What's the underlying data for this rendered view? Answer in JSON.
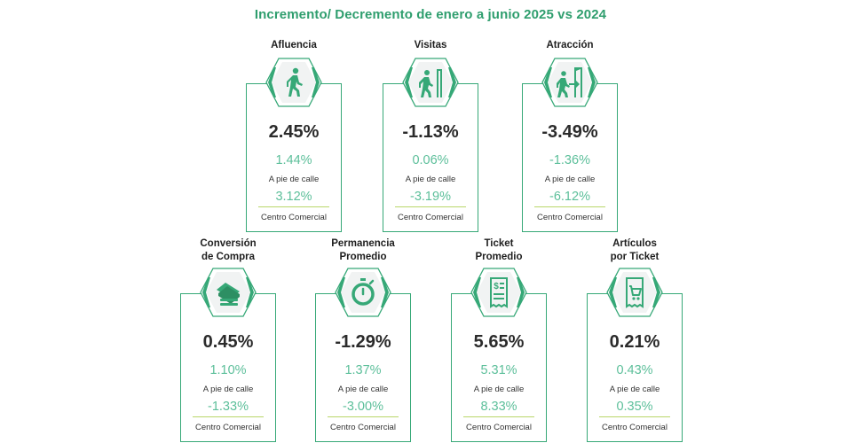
{
  "title": "Incremento/ Decremento de enero a junio 2025 vs 2024",
  "cards": [
    {
      "label": "Afluencia",
      "main": "2.45%",
      "street_value": "1.44%",
      "street_label": "A pie de calle",
      "mall_value": "3.12%",
      "mall_label": "Centro Comercial",
      "icon": "walking-person-icon"
    },
    {
      "label": "Visitas",
      "main": "-1.13%",
      "street_value": "0.06%",
      "street_label": "A pie de calle",
      "mall_value": "-3.19%",
      "mall_label": "Centro Comercial",
      "icon": "person-entering-door-icon"
    },
    {
      "label": "Atracción",
      "main": "-3.49%",
      "street_value": "-1.36%",
      "street_label": "A pie de calle",
      "mall_value": "-6.12%",
      "mall_label": "Centro Comercial",
      "icon": "person-walking-into-door-icon"
    },
    {
      "label": "Conversión\nde Compra",
      "main": "0.45%",
      "street_value": "1.10%",
      "street_label": "A pie de calle",
      "mall_value": "-1.33%",
      "mall_label": "Centro Comercial",
      "icon": "cash-payment-icon"
    },
    {
      "label": "Permanencia\nPromedio",
      "main": "-1.29%",
      "street_value": "1.37%",
      "street_label": "A pie de calle",
      "mall_value": "-3.00%",
      "mall_label": "Centro Comercial",
      "icon": "stopwatch-icon"
    },
    {
      "label": "Ticket\nPromedio",
      "main": "5.65%",
      "street_value": "5.31%",
      "street_label": "A pie de calle",
      "mall_value": "8.33%",
      "mall_label": "Centro Comercial",
      "icon": "receipt-icon"
    },
    {
      "label": "Artículos\npor Ticket",
      "main": "0.21%",
      "street_value": "0.43%",
      "street_label": "A pie de calle",
      "mall_value": "0.35%",
      "mall_label": "Centro Comercial",
      "icon": "shopping-cart-icon"
    }
  ],
  "colors": {
    "accent": "#36a877",
    "title": "#2f9e6e",
    "value_light": "#5cbf9a",
    "separator": "#b9d66a"
  }
}
